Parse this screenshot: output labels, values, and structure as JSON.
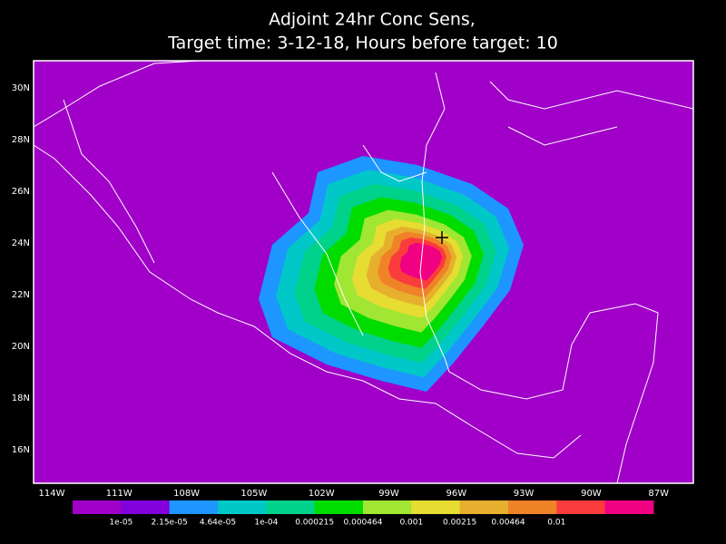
{
  "header": {
    "title_lines": [
      "Adjoint 24hr Conc Sens,",
      "Target time: 3-12-18, Hours before target: 10"
    ]
  },
  "map": {
    "lat_labels": [
      "30N",
      "28N",
      "26N",
      "24N",
      "22N",
      "20N",
      "18N",
      "16N"
    ],
    "lon_labels": [
      "114W",
      "111W",
      "108W",
      "105W",
      "102W",
      "99W",
      "96W",
      "93W",
      "90W",
      "87W"
    ],
    "background": "#a000c8"
  },
  "colorbar": {
    "colors": [
      "#a000c8",
      "#8200dc",
      "#1e96ff",
      "#00c8c8",
      "#00d28c",
      "#00dc00",
      "#a0e632",
      "#e6dc32",
      "#e6af2d",
      "#f08228",
      "#fa3c3c",
      "#f00082"
    ],
    "labels": [
      "1e-05",
      "2.15e-05",
      "4.64e-05",
      "1e-04",
      "0.000215",
      "0.000464",
      "0.001",
      "0.00215",
      "0.00464",
      "0.01"
    ]
  }
}
